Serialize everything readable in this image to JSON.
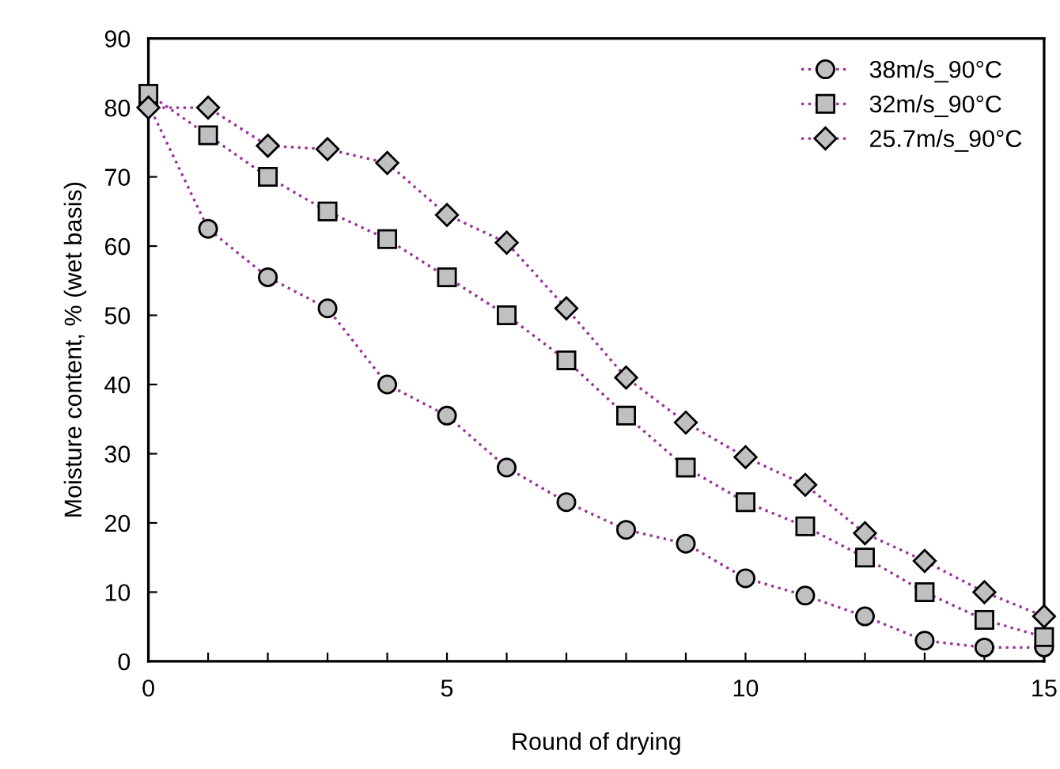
{
  "chart_data": {
    "type": "line",
    "xlabel": "Round of drying",
    "ylabel": "Moisture content, % (wet basis)",
    "x": [
      0,
      1,
      2,
      3,
      4,
      5,
      6,
      7,
      8,
      9,
      10,
      11,
      12,
      13,
      14,
      15
    ],
    "series": [
      {
        "name": "38m/s_90°C",
        "color": "#993399",
        "marker": "circle",
        "values": [
          80.5,
          62.5,
          55.5,
          51,
          40,
          35.5,
          28,
          23,
          19,
          17,
          12,
          9.5,
          6.5,
          3,
          2,
          2
        ]
      },
      {
        "name": "32m/s_90°C",
        "color": "#993399",
        "marker": "square",
        "values": [
          82,
          76,
          70,
          65,
          61,
          55.5,
          50,
          43.5,
          35.5,
          28,
          23,
          19.5,
          15,
          10,
          6,
          3.5
        ]
      },
      {
        "name": "25.7m/s_90°C",
        "color": "#993399",
        "marker": "diamond",
        "values": [
          80,
          80,
          74.5,
          74,
          72,
          64.5,
          60.5,
          51,
          41,
          34.5,
          29.5,
          25.5,
          18.5,
          14.5,
          10,
          6.5
        ]
      }
    ],
    "line_style": "dotted",
    "xlim": [
      0,
      15
    ],
    "ylim": [
      0,
      90
    ],
    "xticks": [
      0,
      {
        "value": 1,
        "label": null
      },
      {
        "value": 2,
        "label": null
      },
      {
        "value": 3,
        "label": null
      },
      {
        "value": 4,
        "label": null
      },
      5,
      {
        "value": 6,
        "label": null
      },
      {
        "value": 7,
        "label": null
      },
      {
        "value": 8,
        "label": null
      },
      {
        "value": 9,
        "label": null
      },
      10,
      {
        "value": 11,
        "label": null
      },
      {
        "value": 12,
        "label": null
      },
      {
        "value": 13,
        "label": null
      },
      {
        "value": 14,
        "label": null
      },
      15
    ],
    "yticks": [
      0,
      10,
      20,
      30,
      40,
      50,
      60,
      70,
      80,
      90
    ],
    "grid": false,
    "legend": "top right"
  }
}
